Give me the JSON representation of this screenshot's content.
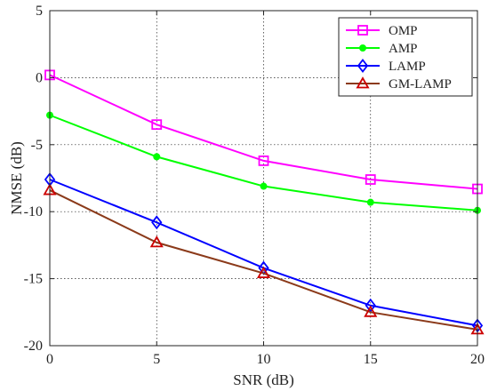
{
  "chart_data": {
    "type": "line",
    "title": "",
    "xlabel": "SNR (dB)",
    "ylabel": "NMSE (dB)",
    "x": [
      0,
      5,
      10,
      15,
      20
    ],
    "xlim": [
      0,
      20
    ],
    "ylim": [
      -20,
      5
    ],
    "xticks": [
      0,
      5,
      10,
      15,
      20
    ],
    "yticks": [
      5,
      0,
      -5,
      -10,
      -15,
      -20
    ],
    "grid": true,
    "legend_position": "top-right",
    "series": [
      {
        "name": "OMP",
        "color": "#ff00ff",
        "marker": "square",
        "values": [
          0.2,
          -3.5,
          -6.2,
          -7.6,
          -8.3
        ]
      },
      {
        "name": "AMP",
        "color": "#00ff00",
        "marker": "star",
        "values": [
          -2.8,
          -5.9,
          -8.1,
          -9.3,
          -9.9
        ]
      },
      {
        "name": "LAMP",
        "color": "#0000ff",
        "marker": "diamond",
        "values": [
          -7.6,
          -10.8,
          -14.2,
          -17.0,
          -18.5
        ]
      },
      {
        "name": "GM-LAMP",
        "color": "#cc0000",
        "line_color": "#8b3a1a",
        "marker": "triangle",
        "values": [
          -8.4,
          -12.3,
          -14.6,
          -17.5,
          -18.8
        ]
      }
    ]
  }
}
